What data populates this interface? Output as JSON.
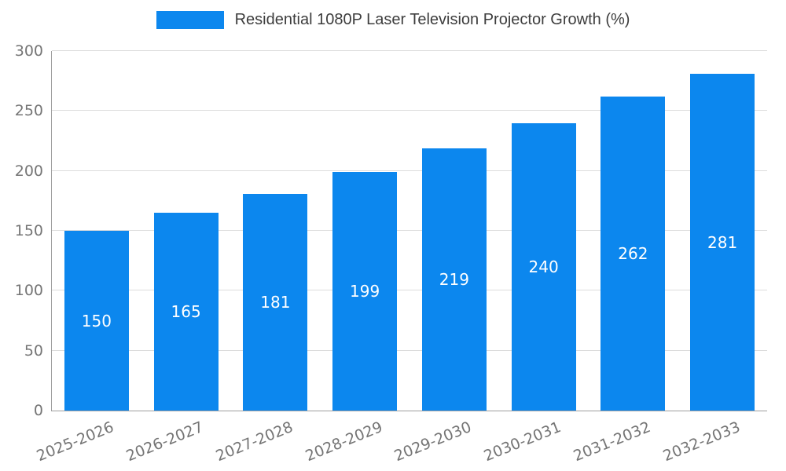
{
  "chart_data": {
    "type": "bar",
    "title": "Residential 1080P Laser Television Projector Growth (%)",
    "categories": [
      "2025-2026",
      "2026-2027",
      "2027-2028",
      "2028-2029",
      "2029-2030",
      "2030-2031",
      "2031-2032",
      "2032-2033"
    ],
    "values": [
      150,
      165,
      181,
      199,
      219,
      240,
      262,
      281
    ],
    "xlabel": "",
    "ylabel": "",
    "ylim": [
      0,
      300
    ],
    "yticks": [
      0,
      50,
      100,
      150,
      200,
      250,
      300
    ],
    "grid": true,
    "legend_position": "top-center",
    "bar_color": "#0c87ee",
    "label_color": "#ffffff",
    "axis_text_color": "#757575",
    "grid_color": "#dcdcdc"
  }
}
